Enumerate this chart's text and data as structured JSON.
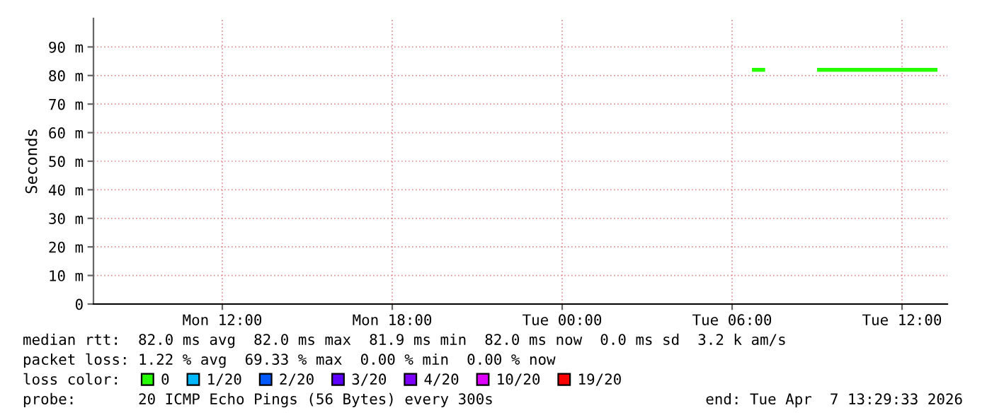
{
  "chart_data": {
    "type": "line",
    "ylabel": "Seconds",
    "x": [
      "2026-04-07T06:42",
      "2026-04-07T07:10",
      "2026-04-07T08:58",
      "2026-04-07T09:00",
      "2026-04-07T10:00",
      "2026-04-07T11:00",
      "2026-04-07T12:00",
      "2026-04-07T13:15"
    ],
    "series": [
      {
        "name": "0",
        "color": "#26ff00",
        "values": [
          82,
          82,
          null,
          82,
          82,
          82,
          82,
          82
        ]
      },
      {
        "name": "1/20",
        "color": "#00b8ff",
        "values": [
          null,
          null,
          null,
          null,
          null,
          null,
          null,
          null
        ]
      },
      {
        "name": "2/20",
        "color": "#0059ff",
        "values": [
          null,
          null,
          null,
          null,
          null,
          null,
          null,
          null
        ]
      },
      {
        "name": "3/20",
        "color": "#5e00ff",
        "values": [
          null,
          null,
          null,
          null,
          null,
          null,
          null,
          null
        ]
      },
      {
        "name": "4/20",
        "color": "#7e00ff",
        "values": [
          null,
          null,
          null,
          null,
          null,
          null,
          null,
          null
        ]
      },
      {
        "name": "10/20",
        "color": "#dd00ff",
        "values": [
          null,
          null,
          null,
          null,
          null,
          null,
          null,
          null
        ]
      },
      {
        "name": "19/20",
        "color": "#ff0000",
        "values": [
          null,
          null,
          null,
          null,
          null,
          null,
          null,
          null
        ]
      }
    ],
    "xlim": [
      "2026-04-06T07:27",
      "2026-04-07T13:36"
    ],
    "xticks": [
      {
        "value": "2026-04-06T12:00",
        "label": "Mon 12:00"
      },
      {
        "value": "2026-04-06T18:00",
        "label": "Mon 18:00"
      },
      {
        "value": "2026-04-07T00:00",
        "label": "Tue 00:00"
      },
      {
        "value": "2026-04-07T06:00",
        "label": "Tue 06:00"
      },
      {
        "value": "2026-04-07T12:00",
        "label": "Tue 12:00"
      }
    ],
    "ylim": [
      0,
      100
    ],
    "yticks": [
      0,
      {
        "value": 10,
        "label": "10 m"
      },
      {
        "value": 20,
        "label": "20 m"
      },
      {
        "value": 30,
        "label": "30 m"
      },
      {
        "value": 40,
        "label": "40 m"
      },
      {
        "value": 50,
        "label": "50 m"
      },
      {
        "value": 60,
        "label": "60 m"
      },
      {
        "value": 70,
        "label": "70 m"
      },
      {
        "value": 80,
        "label": "80 m"
      },
      {
        "value": 90,
        "label": "90 m"
      }
    ],
    "grid": true,
    "legend": "bottom",
    "marker": "none",
    "line_style": "solid",
    "annotations": [
      "median rtt:  82.0 ms avg  82.0 ms max  81.9 ms min  82.0 ms now  0.0 ms sd  3.2 k am/s",
      "packet loss: 1.22 % avg  69.33 % max  0.00 % min  0.00 % now",
      "loss color:",
      "probe:       20 ICMP Echo Pings (56 Bytes) every 300s",
      "end: Tue Apr  7 13:29:33 2026"
    ]
  }
}
